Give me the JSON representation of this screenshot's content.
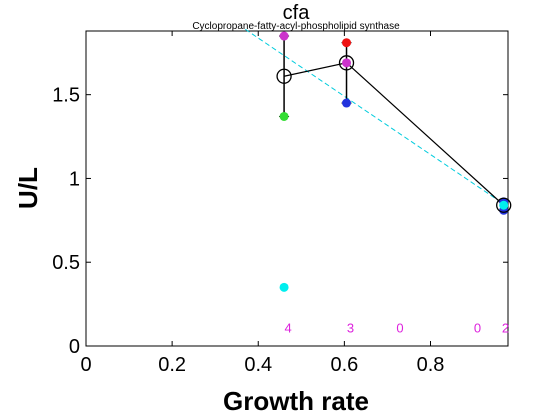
{
  "chart_data": {
    "type": "scatter",
    "title": "cfa",
    "subtitle": "Cyclopropane-fatty-acyl-phospholipid synthase",
    "xlabel": "Growth rate",
    "ylabel": "U/L",
    "xlim": [
      0,
      0.98
    ],
    "ylim": [
      0,
      1.88
    ],
    "x_ticks": [
      0,
      0.2,
      0.4,
      0.6,
      0.8
    ],
    "x_tick_labels": [
      "0",
      "0.2",
      "0.4",
      "0.6",
      "0.8"
    ],
    "y_ticks": [
      0,
      0.5,
      1,
      1.5
    ],
    "y_tick_labels": [
      "0",
      "0.5",
      "1",
      "1.5"
    ],
    "grid": false,
    "points": [
      {
        "x": 0.46,
        "y": 1.85,
        "color": "#cc33cc"
      },
      {
        "x": 0.46,
        "y": 1.37,
        "color": "#33dd33"
      },
      {
        "x": 0.46,
        "y": 0.35,
        "color": "#00eeee"
      },
      {
        "x": 0.605,
        "y": 1.81,
        "color": "#ee1111"
      },
      {
        "x": 0.605,
        "y": 1.69,
        "color": "#cc33cc"
      },
      {
        "x": 0.605,
        "y": 1.45,
        "color": "#2233dd"
      },
      {
        "x": 0.97,
        "y": 0.86,
        "color": "#2233dd"
      },
      {
        "x": 0.97,
        "y": 0.81,
        "color": "#2233dd"
      },
      {
        "x": 0.97,
        "y": 0.84,
        "color": "#00eeee"
      }
    ],
    "mean_series": {
      "x": [
        0.46,
        0.605,
        0.97
      ],
      "y": [
        1.61,
        1.69,
        0.84
      ],
      "color": "#000000"
    },
    "error_bars": [
      {
        "x": 0.46,
        "low": 1.37,
        "high": 1.85
      },
      {
        "x": 0.605,
        "low": 1.45,
        "high": 1.81
      },
      {
        "x": 0.97,
        "low": 0.81,
        "high": 0.86
      }
    ],
    "fit_line": {
      "x": [
        0.37,
        0.98
      ],
      "y": [
        1.89,
        0.83
      ],
      "color": "#00ccdd",
      "style": "dashed"
    },
    "count_labels": [
      {
        "x": 0.46,
        "text": "4"
      },
      {
        "x": 0.605,
        "text": "3"
      },
      {
        "x": 0.72,
        "text": "0"
      },
      {
        "x": 0.9,
        "text": "0"
      },
      {
        "x": 0.965,
        "text": "2"
      }
    ],
    "count_label_y": 0.11,
    "count_label_color": "#dd22dd"
  }
}
